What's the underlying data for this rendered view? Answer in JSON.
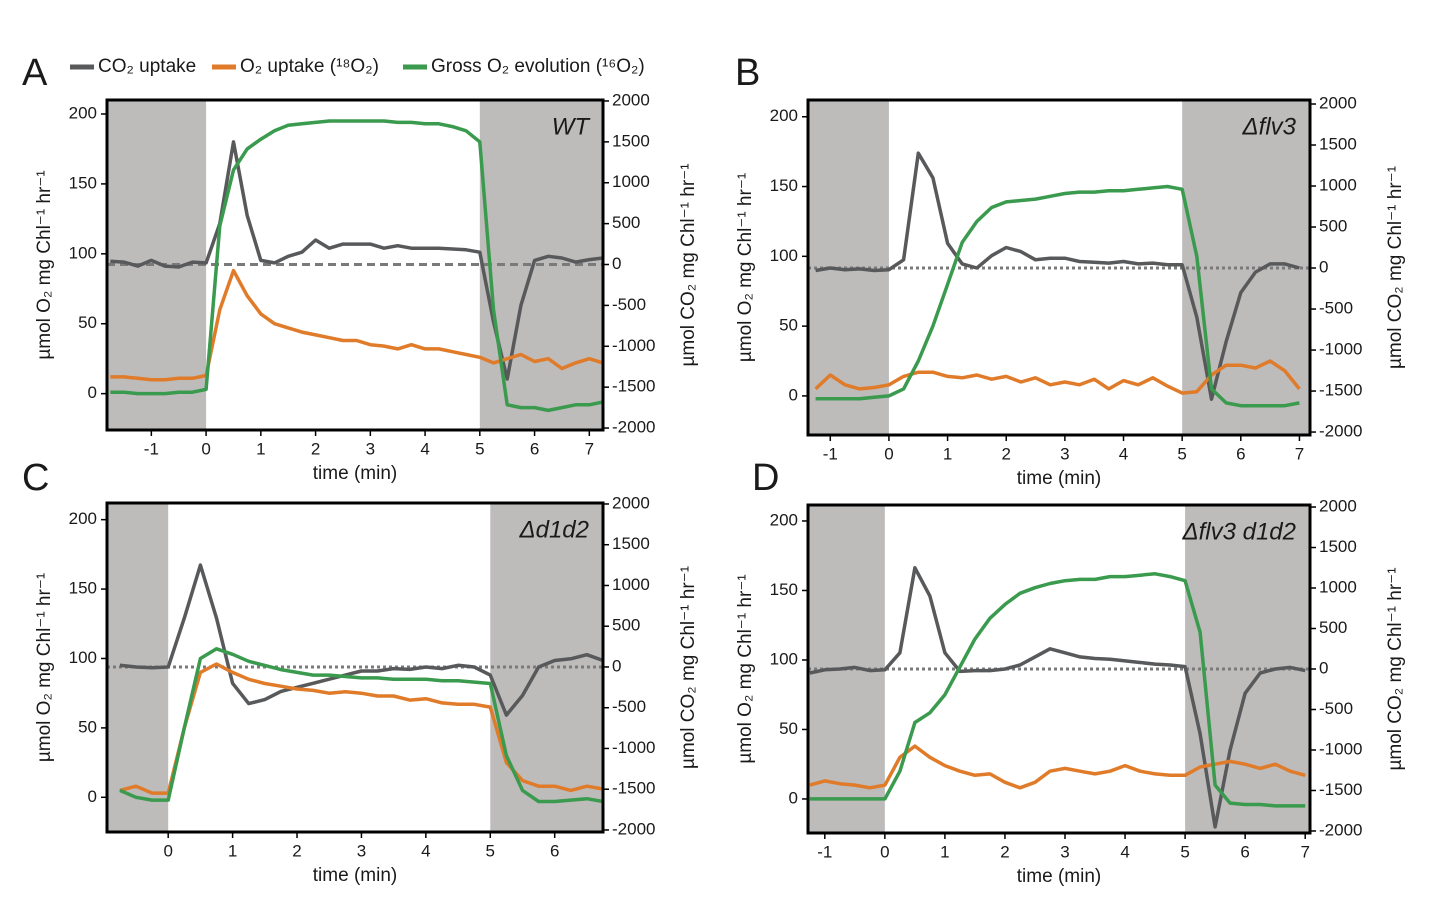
{
  "legend": [
    {
      "name": "CO₂ uptake",
      "color": "#58595b"
    },
    {
      "name": "O₂ uptake (¹⁸O₂)",
      "color": "#e07b2a"
    },
    {
      "name": "Gross O₂ evolution (¹⁶O₂)",
      "color": "#3a9a4e"
    }
  ],
  "chart_data": [
    {
      "type": "line",
      "panel_label": "A",
      "title": "WT",
      "x_label": "time (min)",
      "y_label": "µmol O₂ mg Chl⁻¹ hr⁻¹",
      "y2_label": "µmol CO₂ mg Chl⁻¹ hr⁻¹",
      "xlim": [
        -1.81,
        7.25
      ],
      "ylim": [
        -26,
        210
      ],
      "y2lim": [
        -2024,
        2012
      ],
      "xticks": [
        -1,
        0,
        1,
        2,
        3,
        4,
        5,
        6,
        7
      ],
      "yticks": [
        0,
        50,
        100,
        150,
        200
      ],
      "y2ticks": [
        -2000,
        -1500,
        -1000,
        -500,
        0,
        500,
        1000,
        1500,
        2000
      ],
      "dark_periods": [
        [
          -1.81,
          0
        ],
        [
          5,
          7.25
        ]
      ],
      "reference_line": {
        "axis": "y2",
        "value": 0
      },
      "x": [
        -1.75,
        -1.5,
        -1.25,
        -1,
        -0.75,
        -0.5,
        -0.25,
        0,
        0.25,
        0.5,
        0.75,
        1,
        1.25,
        1.5,
        1.75,
        2,
        2.25,
        2.5,
        2.75,
        3,
        3.25,
        3.5,
        3.75,
        4,
        4.25,
        4.5,
        4.75,
        5,
        5.25,
        5.5,
        5.75,
        6,
        6.25,
        6.5,
        6.75,
        7,
        7.25
      ],
      "series": [
        {
          "color": "#58595b",
          "axis": "y2",
          "values": [
            40,
            30,
            -20,
            50,
            -20,
            -30,
            30,
            20,
            500,
            1500,
            600,
            50,
            20,
            100,
            150,
            300,
            200,
            250,
            250,
            250,
            200,
            230,
            200,
            200,
            200,
            190,
            180,
            150,
            -700,
            -1400,
            -500,
            50,
            100,
            80,
            30,
            60,
            80
          ]
        },
        {
          "color": "#e07b2a",
          "axis": "y",
          "values": [
            12,
            12,
            11,
            10,
            10,
            11,
            11,
            13,
            60,
            88,
            70,
            57,
            50,
            47,
            44,
            42,
            40,
            38,
            38,
            35,
            34,
            32,
            35,
            32,
            32,
            30,
            28,
            26,
            22,
            25,
            28,
            23,
            25,
            18,
            22,
            25,
            22
          ]
        },
        {
          "color": "#3a9a4e",
          "axis": "y",
          "values": [
            1,
            1,
            0,
            0,
            0,
            1,
            1,
            3,
            120,
            160,
            175,
            182,
            188,
            192,
            193,
            194,
            195,
            195,
            195,
            195,
            195,
            194,
            194,
            193,
            193,
            191,
            188,
            180,
            60,
            -8,
            -10,
            -10,
            -12,
            -10,
            -8,
            -8,
            -6
          ]
        }
      ]
    },
    {
      "type": "line",
      "panel_label": "B",
      "title": "Δflv3",
      "x_label": "time (min)",
      "y_label": "µmol O₂ mg Chl⁻¹ hr⁻¹",
      "y2_label": "µmol CO₂ mg Chl⁻¹ hr⁻¹",
      "xlim": [
        -1.38,
        7.18
      ],
      "ylim": [
        -28,
        212
      ],
      "y2lim": [
        -2036,
        2049
      ],
      "xticks": [
        -1,
        0,
        1,
        2,
        3,
        4,
        5,
        6,
        7
      ],
      "yticks": [
        0,
        50,
        100,
        150,
        200
      ],
      "y2ticks": [
        -2000,
        -1500,
        -1000,
        -500,
        0,
        500,
        1000,
        1500,
        2000
      ],
      "dark_periods": [
        [
          -1.38,
          0
        ],
        [
          5,
          7.18
        ]
      ],
      "reference_line": {
        "axis": "y2",
        "value": 0
      },
      "x": [
        -1.25,
        -1,
        -0.75,
        -0.5,
        -0.25,
        0,
        0.25,
        0.5,
        0.75,
        1,
        1.25,
        1.5,
        1.75,
        2,
        2.25,
        2.5,
        2.75,
        3,
        3.25,
        3.5,
        3.75,
        4,
        4.25,
        4.5,
        4.75,
        5,
        5.25,
        5.5,
        5.75,
        6,
        6.25,
        6.5,
        6.75,
        7
      ],
      "series": [
        {
          "color": "#58595b",
          "axis": "y2",
          "values": [
            -30,
            0,
            -20,
            -10,
            -30,
            -20,
            100,
            1400,
            1100,
            300,
            50,
            0,
            150,
            250,
            200,
            100,
            120,
            120,
            80,
            70,
            60,
            80,
            50,
            60,
            40,
            40,
            -600,
            -1600,
            -900,
            -300,
            -50,
            50,
            50,
            0
          ]
        },
        {
          "color": "#e07b2a",
          "axis": "y",
          "values": [
            5,
            15,
            8,
            5,
            6,
            8,
            14,
            17,
            17,
            14,
            13,
            15,
            12,
            14,
            10,
            13,
            8,
            10,
            8,
            12,
            5,
            11,
            8,
            13,
            7,
            2,
            3,
            15,
            22,
            22,
            20,
            25,
            18,
            5
          ]
        },
        {
          "color": "#3a9a4e",
          "axis": "y",
          "values": [
            -2,
            -2,
            -2,
            -2,
            -1,
            0,
            5,
            25,
            50,
            80,
            110,
            125,
            135,
            139,
            140,
            141,
            143,
            145,
            146,
            146,
            147,
            147,
            148,
            149,
            150,
            148,
            100,
            5,
            -5,
            -7,
            -7,
            -7,
            -7,
            -5
          ]
        }
      ]
    },
    {
      "type": "line",
      "panel_label": "C",
      "title": "Δd1d2",
      "x_label": "time (min)",
      "y_label": "µmol O₂ mg Chl⁻¹ hr⁻¹",
      "y2_label": "µmol CO₂ mg Chl⁻¹ hr⁻¹",
      "xlim": [
        -0.95,
        6.75
      ],
      "ylim": [
        -25,
        212
      ],
      "y2lim": [
        -2025,
        2012
      ],
      "xticks": [
        0,
        1,
        2,
        3,
        4,
        5,
        6
      ],
      "yticks": [
        0,
        50,
        100,
        150,
        200
      ],
      "y2ticks": [
        -2000,
        -1500,
        -1000,
        -500,
        0,
        500,
        1000,
        1500,
        2000
      ],
      "dark_periods": [
        [
          -0.95,
          0
        ],
        [
          5,
          6.75
        ]
      ],
      "reference_line": {
        "axis": "y2",
        "value": 0
      },
      "x": [
        -0.75,
        -0.5,
        -0.25,
        0,
        0.25,
        0.5,
        0.75,
        1,
        1.25,
        1.5,
        1.75,
        2,
        2.25,
        2.5,
        2.75,
        3,
        3.25,
        3.5,
        3.75,
        4,
        4.25,
        4.5,
        4.75,
        5,
        5.25,
        5.5,
        5.75,
        6,
        6.25,
        6.5,
        6.75
      ],
      "series": [
        {
          "color": "#58595b",
          "axis": "y2",
          "values": [
            20,
            0,
            -10,
            0,
            600,
            1250,
            600,
            -200,
            -450,
            -400,
            -300,
            -250,
            -200,
            -150,
            -100,
            -50,
            -50,
            -20,
            -30,
            0,
            -20,
            20,
            0,
            -100,
            -590,
            -350,
            0,
            80,
            100,
            150,
            80
          ]
        },
        {
          "color": "#e07b2a",
          "axis": "y",
          "values": [
            5,
            8,
            3,
            3,
            50,
            90,
            96,
            90,
            85,
            82,
            80,
            78,
            77,
            75,
            76,
            75,
            73,
            73,
            70,
            71,
            68,
            67,
            67,
            65,
            25,
            12,
            8,
            8,
            5,
            8,
            6
          ]
        },
        {
          "color": "#3a9a4e",
          "axis": "y",
          "values": [
            5,
            0,
            -2,
            -2,
            50,
            100,
            107,
            103,
            98,
            95,
            92,
            90,
            88,
            88,
            87,
            86,
            86,
            85,
            85,
            85,
            84,
            84,
            83,
            82,
            30,
            5,
            -3,
            -3,
            -2,
            -1,
            -3
          ]
        }
      ]
    },
    {
      "type": "line",
      "panel_label": "D",
      "title": "Δflv3 d1d2",
      "x_label": "time (min)",
      "y_label": "µmol O₂ mg Chl⁻¹ hr⁻¹",
      "y2_label": "µmol CO₂ mg Chl⁻¹ hr⁻¹",
      "xlim": [
        -1.28,
        7.08
      ],
      "ylim": [
        -24.5,
        211.5
      ],
      "y2lim": [
        -2025,
        2025
      ],
      "xticks": [
        -1,
        0,
        1,
        2,
        3,
        4,
        5,
        6,
        7
      ],
      "yticks": [
        0,
        50,
        100,
        150,
        200
      ],
      "y2ticks": [
        -2000,
        -1500,
        -1000,
        -500,
        0,
        500,
        1000,
        1500,
        2000
      ],
      "dark_periods": [
        [
          -1.28,
          0
        ],
        [
          5,
          7.08
        ]
      ],
      "reference_line": {
        "axis": "y2",
        "value": 0
      },
      "x": [
        -1.25,
        -1,
        -0.75,
        -0.5,
        -0.25,
        0,
        0.25,
        0.5,
        0.75,
        1,
        1.25,
        1.5,
        1.75,
        2,
        2.25,
        2.5,
        2.75,
        3,
        3.25,
        3.5,
        3.75,
        4,
        4.25,
        4.5,
        4.75,
        5,
        5.25,
        5.5,
        5.75,
        6,
        6.25,
        6.5,
        6.75,
        7
      ],
      "series": [
        {
          "color": "#58595b",
          "axis": "y2",
          "values": [
            -50,
            -10,
            0,
            20,
            -20,
            -10,
            200,
            1250,
            900,
            200,
            -30,
            -20,
            -20,
            0,
            50,
            150,
            250,
            200,
            150,
            130,
            120,
            100,
            80,
            60,
            50,
            30,
            -800,
            -1950,
            -1000,
            -300,
            -50,
            0,
            20,
            -20
          ]
        },
        {
          "color": "#e07b2a",
          "axis": "y",
          "values": [
            10,
            13,
            11,
            10,
            8,
            10,
            30,
            38,
            30,
            24,
            20,
            17,
            18,
            12,
            8,
            12,
            20,
            22,
            20,
            18,
            20,
            24,
            20,
            18,
            17,
            17,
            23,
            25,
            27,
            25,
            22,
            25,
            20,
            17
          ]
        },
        {
          "color": "#3a9a4e",
          "axis": "y",
          "values": [
            0,
            0,
            0,
            0,
            0,
            0,
            20,
            55,
            62,
            75,
            95,
            115,
            130,
            140,
            148,
            152,
            155,
            157,
            158,
            158,
            160,
            160,
            161,
            162,
            160,
            157,
            120,
            10,
            -3,
            -4,
            -4,
            -5,
            -5,
            -5
          ]
        }
      ]
    }
  ]
}
